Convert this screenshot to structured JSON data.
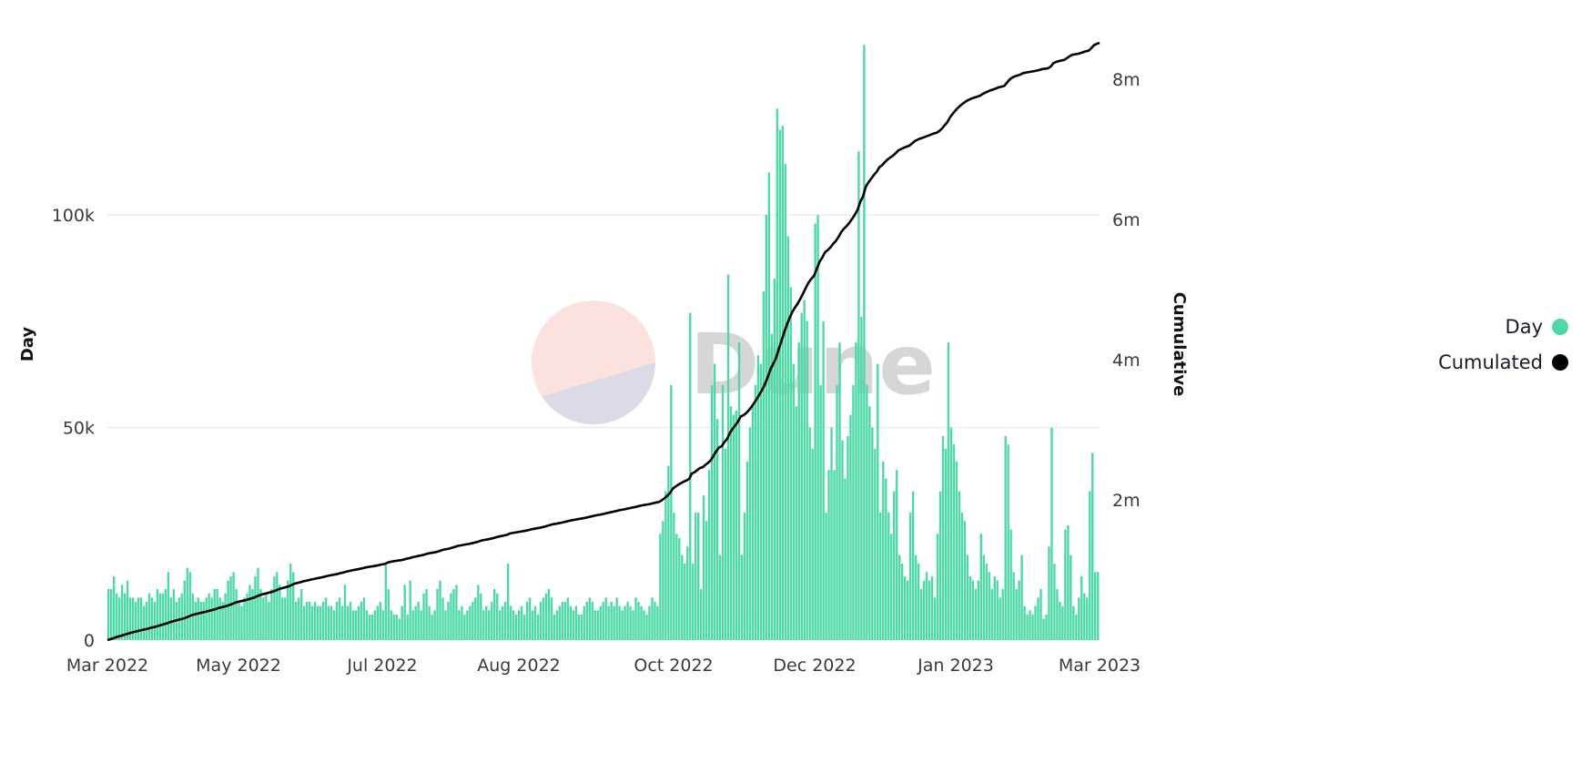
{
  "chart_data": {
    "type": "bar+line",
    "title": "",
    "x_range": [
      "2022-03-01",
      "2023-03-01"
    ],
    "x_tick_labels": [
      "Mar 2022",
      "May 2022",
      "Jul 2022",
      "Aug 2022",
      "Oct 2022",
      "Dec 2022",
      "Jan 2023",
      "Mar 2023"
    ],
    "y_left": {
      "label": "Day",
      "ticks": [
        "0",
        "50k",
        "100k"
      ],
      "tick_values": [
        0,
        50000,
        100000
      ],
      "range": [
        0,
        142000
      ]
    },
    "y_right": {
      "label": "Cumulative",
      "ticks": [
        "2m",
        "4m",
        "6m",
        "8m"
      ],
      "tick_values": [
        2000000,
        4000000,
        6000000,
        8000000
      ],
      "range": [
        0,
        8610000
      ]
    },
    "grid": true,
    "legend_position": "right",
    "series": [
      {
        "name": "Day",
        "type": "bar",
        "axis": "left",
        "color": "#4cd9a6",
        "values_k": [
          12,
          12,
          15,
          11,
          10,
          13,
          11,
          14,
          10,
          10,
          9,
          10,
          10,
          8,
          9,
          11,
          10,
          9,
          12,
          11,
          11,
          12,
          16,
          10,
          12,
          9,
          10,
          11,
          14,
          17,
          16,
          11,
          9,
          10,
          9,
          9,
          10,
          11,
          10,
          12,
          12,
          10,
          9,
          11,
          14,
          15,
          16,
          12,
          9,
          8,
          10,
          11,
          13,
          12,
          15,
          17,
          12,
          10,
          11,
          9,
          12,
          15,
          16,
          13,
          10,
          10,
          14,
          18,
          16,
          9,
          10,
          12,
          8,
          9,
          9,
          8,
          9,
          8,
          8,
          9,
          10,
          8,
          8,
          7,
          9,
          10,
          8,
          13,
          8,
          9,
          7,
          7,
          8,
          9,
          10,
          7,
          6,
          6,
          7,
          8,
          9,
          7,
          18,
          12,
          7,
          6,
          6,
          5,
          8,
          13,
          6,
          14,
          7,
          8,
          9,
          7,
          11,
          12,
          8,
          6,
          7,
          12,
          14,
          10,
          7,
          9,
          11,
          12,
          13,
          7,
          8,
          6,
          7,
          8,
          9,
          10,
          13,
          11,
          7,
          8,
          7,
          9,
          12,
          11,
          7,
          8,
          9,
          18,
          8,
          7,
          6,
          7,
          8,
          6,
          9,
          10,
          7,
          8,
          6,
          9,
          10,
          11,
          12,
          10,
          6,
          7,
          8,
          9,
          9,
          10,
          8,
          7,
          8,
          6,
          6,
          8,
          9,
          10,
          9,
          7,
          7,
          8,
          9,
          10,
          8,
          9,
          8,
          10,
          8,
          7,
          8,
          9,
          8,
          7,
          10,
          9,
          8,
          7,
          6,
          8,
          10,
          9,
          8,
          25,
          28,
          35,
          41,
          60,
          30,
          25,
          24,
          20,
          18,
          22,
          77,
          18,
          30,
          30,
          12,
          34,
          28,
          40,
          60,
          65,
          52,
          20,
          60,
          45,
          86,
          55,
          53,
          54,
          70,
          20,
          30,
          42,
          50,
          55,
          60,
          67,
          65,
          82,
          100,
          110,
          72,
          85,
          125,
          120,
          121,
          112,
          95,
          83,
          65,
          55,
          70,
          77,
          80,
          75,
          50,
          45,
          98,
          100,
          60,
          75,
          30,
          40,
          50,
          40,
          60,
          70,
          47,
          38,
          48,
          53,
          60,
          70,
          115,
          76,
          140,
          60,
          55,
          50,
          45,
          65,
          30,
          42,
          38,
          30,
          25,
          35,
          40,
          20,
          18,
          15,
          14,
          30,
          35,
          20,
          18,
          12,
          14,
          16,
          14,
          15,
          10,
          25,
          35,
          48,
          45,
          70,
          50,
          46,
          42,
          35,
          30,
          28,
          20,
          15,
          14,
          12,
          14,
          25,
          20,
          18,
          16,
          12,
          15,
          14,
          10,
          12,
          48,
          46,
          26,
          16,
          12,
          14,
          20,
          8,
          6,
          7,
          6,
          8,
          10,
          12,
          5,
          6,
          22,
          50,
          18,
          12,
          9,
          8,
          26,
          27,
          20,
          8,
          6,
          10,
          15,
          11,
          10,
          35,
          44,
          16,
          16
        ]
      },
      {
        "name": "Cumulated",
        "type": "line",
        "axis": "right",
        "color": "#000000",
        "derived_from": "running sum of Day"
      }
    ]
  },
  "legend": {
    "items": [
      {
        "label": "Day",
        "color": "#4cd9a6"
      },
      {
        "label": "Cumulated",
        "color": "#000000"
      }
    ]
  },
  "watermark": {
    "text": "Dune"
  }
}
